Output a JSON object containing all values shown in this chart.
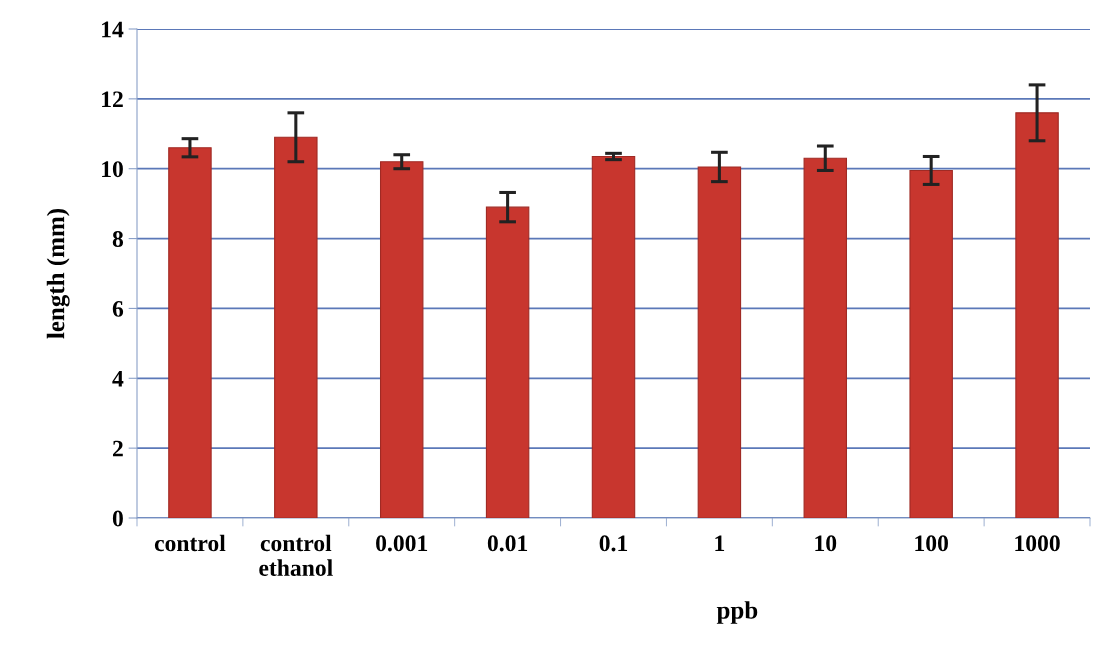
{
  "chart_data": {
    "type": "bar",
    "xlabel": "ppb",
    "ylabel": "length (mm)",
    "categories": [
      "control",
      "control\nethanol",
      "0.001",
      "0.01",
      "0.1",
      "1",
      "10",
      "100",
      "1000"
    ],
    "values": [
      10.6,
      10.9,
      10.2,
      8.9,
      10.35,
      10.05,
      10.3,
      9.95,
      11.6
    ],
    "errors": [
      0.26,
      0.7,
      0.2,
      0.42,
      0.09,
      0.42,
      0.35,
      0.4,
      0.8
    ],
    "color": "#c8362e",
    "ylim": [
      0,
      14
    ],
    "yticks": [
      0,
      2,
      4,
      6,
      8,
      10,
      12,
      14
    ],
    "grid": "y",
    "legend": false
  }
}
